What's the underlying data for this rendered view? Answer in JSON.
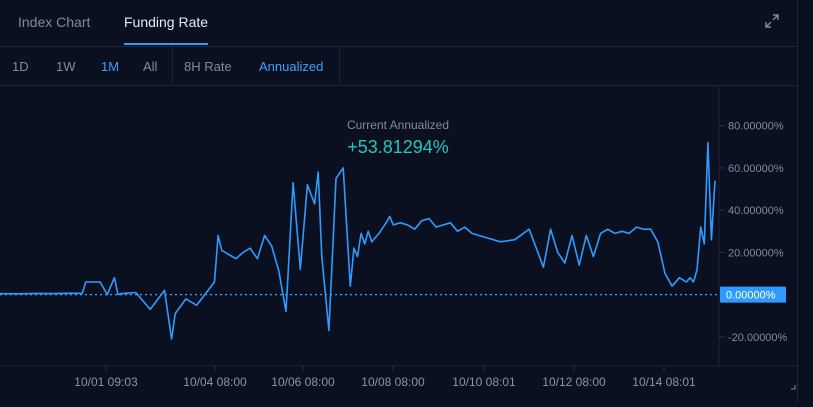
{
  "tabs": [
    {
      "label": "Index Chart",
      "active": false
    },
    {
      "label": "Funding Rate",
      "active": true
    }
  ],
  "range_buttons": [
    {
      "label": "1D",
      "active": false
    },
    {
      "label": "1W",
      "active": false
    },
    {
      "label": "1M",
      "active": true
    },
    {
      "label": "All",
      "active": false
    }
  ],
  "rate_buttons": [
    {
      "label": "8H Rate",
      "active": false
    },
    {
      "label": "Annualized",
      "active": true
    }
  ],
  "expand_icon": "expand-arrows-icon",
  "colors": {
    "background": "#0b1020",
    "line": "#2f9bff",
    "accent": "#3aa0ff",
    "current_value": "#22c7b8",
    "zero_badge": "#2f9bff"
  },
  "current": {
    "label": "Current Annualized",
    "value": "+53.81294%"
  },
  "chart_data": {
    "type": "line",
    "x_tick_labels": [
      "10/01 09:03",
      "10/04 08:00",
      "10/06 08:00",
      "10/08 08:00",
      "10/10 08:01",
      "10/12 08:00",
      "10/14 08:01"
    ],
    "y_tick_labels": [
      "80.00000%",
      "60.00000%",
      "40.00000%",
      "20.00000%",
      "0.00000%",
      "-20.00000%"
    ],
    "ylim": [
      -30,
      95
    ],
    "zero_label": "0.00000%",
    "grid": false,
    "series": [
      {
        "x_fraction_of_period": [
          0,
          0.025,
          0.05,
          0.075,
          0.1,
          0.115,
          0.12,
          0.14,
          0.15,
          0.16,
          0.165,
          0.17,
          0.19,
          0.21,
          0.23,
          0.24,
          0.245,
          0.26,
          0.275,
          0.3,
          0.305,
          0.31,
          0.33,
          0.34,
          0.35,
          0.36,
          0.37,
          0.38,
          0.39,
          0.4,
          0.41,
          0.42,
          0.43,
          0.44,
          0.445,
          0.45,
          0.46,
          0.47,
          0.48,
          0.49,
          0.495,
          0.5,
          0.505,
          0.51,
          0.515,
          0.52,
          0.53,
          0.54,
          0.545,
          0.55,
          0.56,
          0.57,
          0.58,
          0.59,
          0.6,
          0.61,
          0.62,
          0.63,
          0.64,
          0.65,
          0.66,
          0.68,
          0.7,
          0.72,
          0.74,
          0.75,
          0.76,
          0.77,
          0.78,
          0.79,
          0.8,
          0.81,
          0.82,
          0.83,
          0.84,
          0.85,
          0.86,
          0.87,
          0.88,
          0.89,
          0.9,
          0.91,
          0.92,
          0.93,
          0.94,
          0.95,
          0.96,
          0.965,
          0.97,
          0.975,
          0.98,
          0.985,
          0.99,
          0.995,
          1
        ],
        "y": [
          0.5,
          0.4,
          0.6,
          0.5,
          0.7,
          0.6,
          6,
          6,
          0,
          8,
          0,
          0.5,
          1,
          -7,
          2,
          -21,
          -9,
          -2,
          -5,
          6,
          28,
          21,
          17,
          20,
          22,
          17,
          28,
          23,
          11,
          -8,
          53,
          12,
          52,
          43,
          58,
          18,
          -17,
          55,
          60,
          4,
          22,
          18,
          29,
          24,
          30,
          25,
          29,
          34,
          37,
          33,
          34,
          33,
          31,
          35,
          36,
          32,
          33,
          34,
          30,
          32,
          29,
          27,
          25,
          26,
          31,
          22,
          13,
          31,
          20,
          15,
          28,
          14,
          28,
          18,
          29,
          31,
          29,
          30,
          29,
          32,
          31,
          31,
          25,
          10,
          4,
          8,
          6,
          8,
          6,
          12,
          32,
          24,
          72,
          26,
          54
        ]
      }
    ]
  }
}
